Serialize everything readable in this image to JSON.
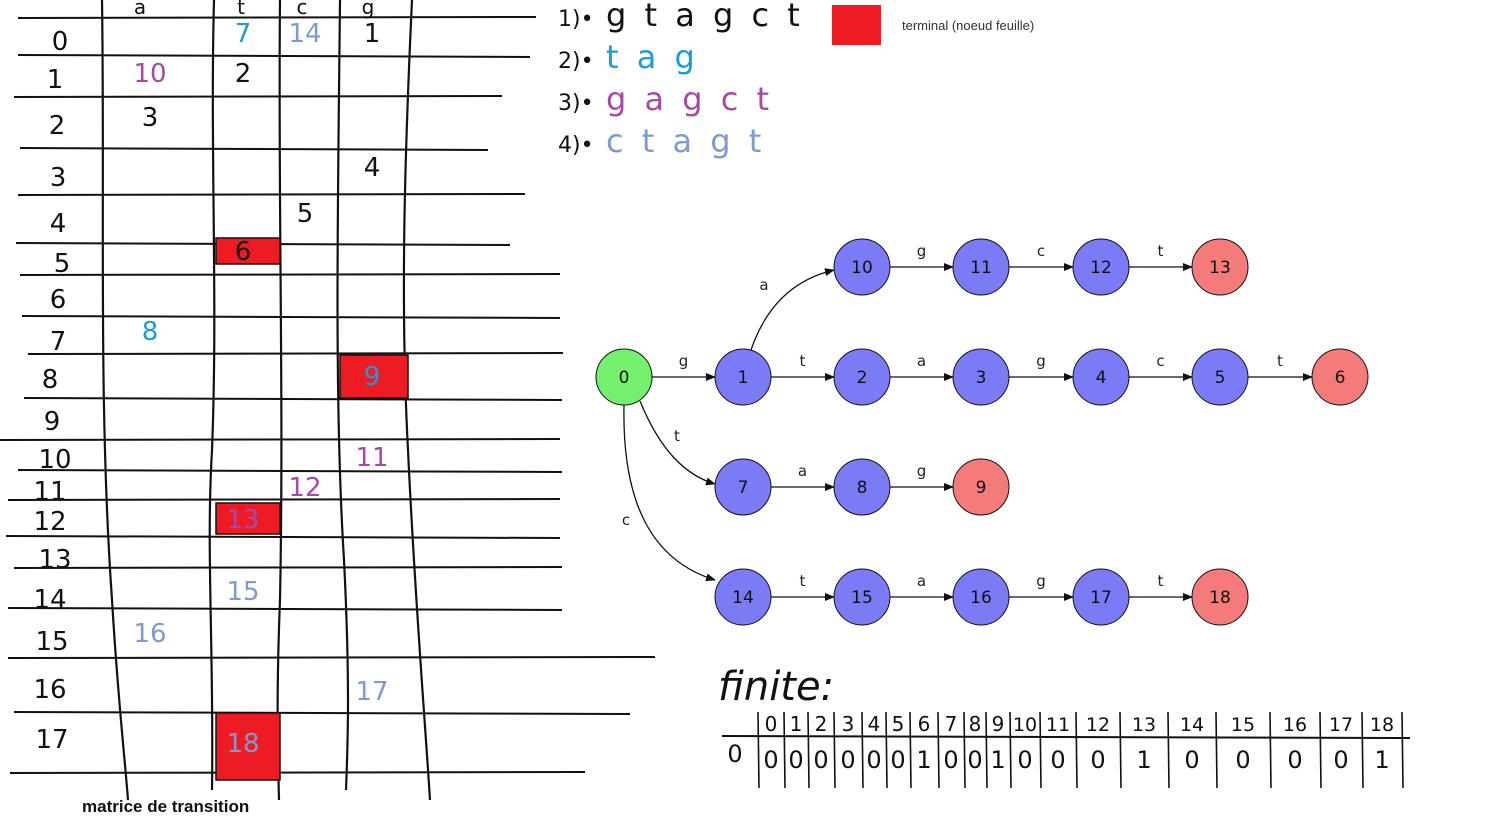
{
  "legend": {
    "label": "terminal (noeud feuille)",
    "color": "#ed1c24"
  },
  "matrix": {
    "caption": "matrice de transition",
    "columns": [
      "a",
      "t",
      "c",
      "g"
    ],
    "row_labels": [
      "0",
      "1",
      "2",
      "3",
      "4",
      "5",
      "6",
      "7",
      "8",
      "9",
      "10",
      "11",
      "12",
      "13",
      "14",
      "15",
      "16",
      "17"
    ],
    "entries": [
      {
        "row": "0",
        "col": "t",
        "text": "7",
        "color": "#1a9cd8"
      },
      {
        "row": "0",
        "col": "c",
        "text": "14",
        "color": "#7d9bd0"
      },
      {
        "row": "0",
        "col": "g",
        "text": "1",
        "color": "#111111"
      },
      {
        "row": "1",
        "col": "a",
        "text": "10",
        "color": "#a84aa5"
      },
      {
        "row": "1",
        "col": "t",
        "text": "2",
        "color": "#111111"
      },
      {
        "row": "2",
        "col": "a",
        "text": "3",
        "color": "#111111"
      },
      {
        "row": "3",
        "col": "g",
        "text": "4",
        "color": "#111111"
      },
      {
        "row": "4",
        "col": "c",
        "text": "5",
        "color": "#111111"
      },
      {
        "row": "5",
        "col": "t",
        "text": "6",
        "color": "#111111",
        "terminal": true
      },
      {
        "row": "7",
        "col": "a",
        "text": "8",
        "color": "#1a9cd8"
      },
      {
        "row": "8",
        "col": "g",
        "text": "9",
        "color": "#1a9cd8",
        "terminal": true
      },
      {
        "row": "10",
        "col": "g",
        "text": "11",
        "color": "#a84aa5"
      },
      {
        "row": "11",
        "col": "c",
        "text": "12",
        "color": "#a84aa5"
      },
      {
        "row": "12",
        "col": "t",
        "text": "13",
        "color": "#a84aa5",
        "terminal": true
      },
      {
        "row": "14",
        "col": "t",
        "text": "15",
        "color": "#7d9bd0"
      },
      {
        "row": "15",
        "col": "a",
        "text": "16",
        "color": "#7d9bd0"
      },
      {
        "row": "16",
        "col": "g",
        "text": "17",
        "color": "#7d9bd0"
      },
      {
        "row": "17",
        "col": "t",
        "text": "18",
        "color": "#7d9bd0",
        "terminal": true
      }
    ]
  },
  "words": [
    {
      "label": "1)•",
      "word": "g t a g c t",
      "color": "#111111"
    },
    {
      "label": "2)•",
      "word": "t a g",
      "color": "#1a9cd8"
    },
    {
      "label": "3)•",
      "word": "g a g c t",
      "color": "#a84aa5"
    },
    {
      "label": "4)•",
      "word": "c t a g t",
      "color": "#7d9bd0"
    }
  ],
  "trie": {
    "nodes": [
      {
        "id": "0",
        "type": "root"
      },
      {
        "id": "1",
        "type": "internal"
      },
      {
        "id": "2",
        "type": "internal"
      },
      {
        "id": "3",
        "type": "internal"
      },
      {
        "id": "4",
        "type": "internal"
      },
      {
        "id": "5",
        "type": "internal"
      },
      {
        "id": "6",
        "type": "terminal"
      },
      {
        "id": "7",
        "type": "internal"
      },
      {
        "id": "8",
        "type": "internal"
      },
      {
        "id": "9",
        "type": "terminal"
      },
      {
        "id": "10",
        "type": "internal"
      },
      {
        "id": "11",
        "type": "internal"
      },
      {
        "id": "12",
        "type": "internal"
      },
      {
        "id": "13",
        "type": "terminal"
      },
      {
        "id": "14",
        "type": "internal"
      },
      {
        "id": "15",
        "type": "internal"
      },
      {
        "id": "16",
        "type": "internal"
      },
      {
        "id": "17",
        "type": "internal"
      },
      {
        "id": "18",
        "type": "terminal"
      }
    ],
    "edges": [
      {
        "from": "0",
        "to": "1",
        "label": "g"
      },
      {
        "from": "0",
        "to": "7",
        "label": "t"
      },
      {
        "from": "0",
        "to": "14",
        "label": "c"
      },
      {
        "from": "1",
        "to": "10",
        "label": "a"
      },
      {
        "from": "1",
        "to": "2",
        "label": "t"
      },
      {
        "from": "2",
        "to": "3",
        "label": "a"
      },
      {
        "from": "3",
        "to": "4",
        "label": "g"
      },
      {
        "from": "4",
        "to": "5",
        "label": "c"
      },
      {
        "from": "5",
        "to": "6",
        "label": "t"
      },
      {
        "from": "7",
        "to": "8",
        "label": "a"
      },
      {
        "from": "8",
        "to": "9",
        "label": "g"
      },
      {
        "from": "10",
        "to": "11",
        "label": "g"
      },
      {
        "from": "11",
        "to": "12",
        "label": "c"
      },
      {
        "from": "12",
        "to": "13",
        "label": "t"
      },
      {
        "from": "14",
        "to": "15",
        "label": "t"
      },
      {
        "from": "15",
        "to": "16",
        "label": "a"
      },
      {
        "from": "16",
        "to": "17",
        "label": "g"
      },
      {
        "from": "17",
        "to": "18",
        "label": "t"
      }
    ],
    "colors": {
      "root": "#74f06e",
      "internal": "#7b7bf5",
      "terminal": "#f57b7b"
    }
  },
  "finite": {
    "title": "finite:",
    "row_label": "0",
    "headers": [
      "0",
      "1",
      "2",
      "3",
      "4",
      "5",
      "6",
      "7",
      "8",
      "9",
      "10",
      "11",
      "12",
      "13",
      "14",
      "15",
      "16",
      "17",
      "18"
    ],
    "values": [
      "0",
      "0",
      "0",
      "0",
      "0",
      "0",
      "1",
      "0",
      "0",
      "1",
      "0",
      "0",
      "0",
      "1",
      "0",
      "0",
      "0",
      "0",
      "1"
    ]
  }
}
